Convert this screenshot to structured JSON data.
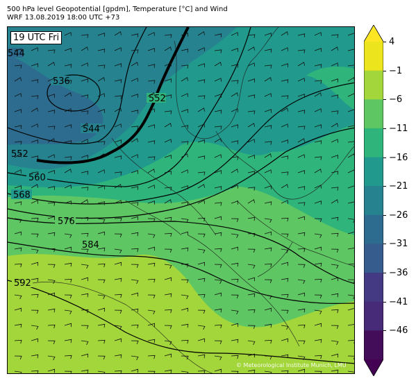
{
  "header": {
    "line1": "500 hPa level Geopotential [gpdm], Temperature [°C] and Wind",
    "line2": "WRF 13.08.2019 18:00 UTC +73"
  },
  "time_label": "19 UTC Fri",
  "copyright": "© Meteorological Institute Munich, LMU",
  "contour_labels": [
    "536",
    "544",
    "552",
    "552",
    "560",
    "568",
    "576",
    "584",
    "592",
    "544"
  ],
  "colorbar": {
    "ticks": [
      "4",
      "−1",
      "−6",
      "−11",
      "−16",
      "−21",
      "−26",
      "−31",
      "−36",
      "−41",
      "−46"
    ],
    "colors": [
      "#ece41c",
      "#a3d63b",
      "#5ec662",
      "#2fb47c",
      "#21998c",
      "#25828e",
      "#2d6c8e",
      "#365b8d",
      "#443a83",
      "#472a78",
      "#440d5a"
    ],
    "extend_top_color": "#fde725",
    "extend_bottom_color": "#440154"
  },
  "map_colors": {
    "cold": "#2d6c8e",
    "cool": "#25828e",
    "mid": "#21998c",
    "mild": "#2fb47c",
    "warm": "#5ec662",
    "hot": "#a3d63b"
  }
}
